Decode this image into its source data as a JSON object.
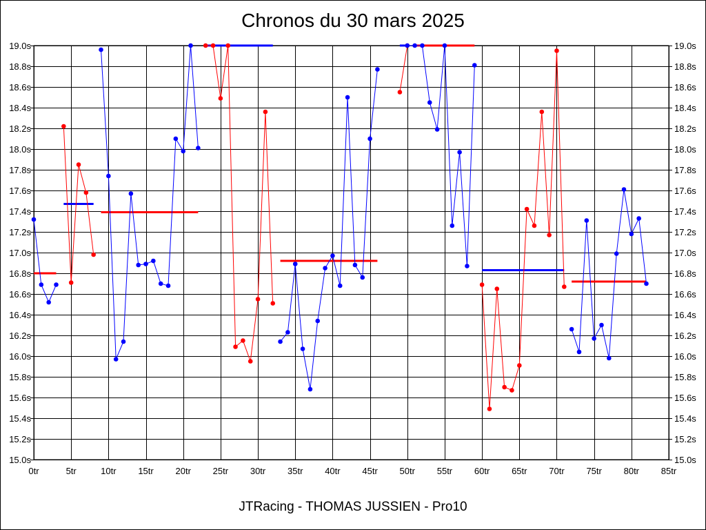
{
  "page": {
    "title": "Chronos du 30 mars 2025",
    "footer": "JTRacing - THOMAS JUSSIEN - Pro10"
  },
  "chart_data": {
    "type": "line",
    "title": "Chronos du 30 mars 2025",
    "xlabel": "",
    "ylabel": "",
    "xlim": [
      0,
      85
    ],
    "ylim": [
      15.0,
      19.0
    ],
    "grid": true,
    "x_ticks": [
      0,
      5,
      10,
      15,
      20,
      25,
      30,
      35,
      40,
      45,
      50,
      55,
      60,
      65,
      70,
      75,
      80,
      85
    ],
    "x_tick_suffix": "tr",
    "y_ticks": [
      15.0,
      15.2,
      15.4,
      15.6,
      15.8,
      16.0,
      16.2,
      16.4,
      16.6,
      16.8,
      17.0,
      17.2,
      17.4,
      17.6,
      17.8,
      18.0,
      18.2,
      18.4,
      18.6,
      18.8,
      19.0
    ],
    "y_tick_suffix": "s",
    "colors": {
      "blue": "#0000ff",
      "red": "#ff0000"
    },
    "series": [
      {
        "color": "#0000ff",
        "x": [
          0,
          1,
          2,
          3
        ],
        "y": [
          17.32,
          16.69,
          16.52,
          16.69
        ],
        "mean": 16.8,
        "mean_range": [
          0,
          3
        ],
        "mean_color": "#ff0000"
      },
      {
        "color": "#ff0000",
        "x": [
          4,
          5,
          6,
          7,
          8
        ],
        "y": [
          18.22,
          16.71,
          17.85,
          17.58,
          16.98
        ],
        "mean": 17.47,
        "mean_range": [
          4,
          8
        ],
        "mean_color": "#0000ff"
      },
      {
        "color": "#0000ff",
        "x": [
          9,
          10,
          11,
          12,
          13,
          14,
          15,
          16,
          17,
          18,
          19,
          20,
          21,
          22
        ],
        "y": [
          18.96,
          17.74,
          15.97,
          16.14,
          17.57,
          16.88,
          16.89,
          16.92,
          16.7,
          16.68,
          18.1,
          17.98,
          19.0,
          18.01
        ],
        "mean": 17.39,
        "mean_range": [
          9,
          22
        ],
        "mean_color": "#ff0000"
      },
      {
        "color": "#ff0000",
        "x": [
          23,
          24,
          25,
          26,
          27,
          28,
          29,
          30,
          31,
          32
        ],
        "y": [
          19.0,
          19.0,
          18.49,
          19.0,
          16.09,
          16.15,
          15.95,
          16.55,
          18.36,
          16.51
        ],
        "mean": 19.0,
        "mean_range": [
          23,
          32
        ],
        "mean_color": "#0000ff"
      },
      {
        "color": "#0000ff",
        "x": [
          33,
          34,
          35,
          36,
          37,
          38,
          39,
          40,
          41,
          42,
          43,
          44,
          45,
          46
        ],
        "y": [
          16.14,
          16.23,
          16.89,
          16.07,
          15.68,
          16.34,
          16.85,
          16.97,
          16.68,
          18.5,
          16.88,
          16.76,
          18.1,
          18.77
        ],
        "mean": 16.92,
        "mean_range": [
          33,
          46
        ],
        "mean_color": "#ff0000"
      },
      {
        "color": "#ff0000",
        "x": [
          49,
          50
        ],
        "y": [
          18.55,
          19.0
        ],
        "mean": 19.0,
        "mean_range": [
          49,
          50
        ],
        "mean_color": "#0000ff"
      },
      {
        "color": "#0000ff",
        "x": [
          50,
          51,
          52,
          53,
          54,
          55,
          56,
          57,
          58,
          59
        ],
        "y": [
          19.0,
          19.0,
          19.0,
          18.45,
          18.19,
          19.0,
          17.26,
          17.97,
          16.87,
          18.81
        ],
        "mean": 19.0,
        "mean_range": [
          51,
          59
        ],
        "mean_color": "#ff0000"
      },
      {
        "color": "#ff0000",
        "x": [
          60,
          61,
          62,
          63,
          64,
          65,
          66,
          67,
          68,
          69,
          70,
          71
        ],
        "y": [
          16.69,
          15.49,
          16.65,
          15.7,
          15.67,
          15.91,
          17.42,
          17.26,
          18.36,
          17.17,
          18.95,
          16.67
        ],
        "mean": 16.83,
        "mean_range": [
          60,
          71
        ],
        "mean_color": "#0000ff"
      },
      {
        "color": "#0000ff",
        "x": [
          72,
          73,
          74,
          75,
          76,
          77,
          78,
          79,
          80,
          81,
          82
        ],
        "y": [
          16.26,
          16.04,
          17.31,
          16.17,
          16.3,
          15.98,
          16.99,
          17.61,
          17.18,
          17.33,
          16.7
        ],
        "mean": 16.72,
        "mean_range": [
          72,
          82
        ],
        "mean_color": "#ff0000"
      }
    ]
  }
}
